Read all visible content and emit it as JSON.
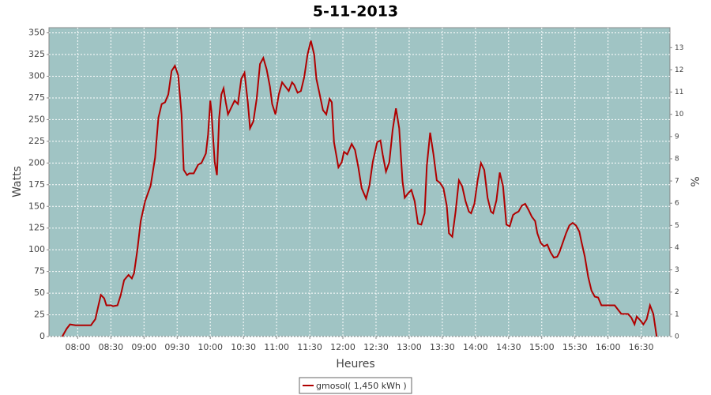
{
  "chart_data": {
    "type": "line",
    "title": "5-11-2013",
    "xlabel": "Heures",
    "ylabel": "Watts",
    "y2label": "%",
    "x": [
      466,
      470,
      473,
      478,
      492,
      496,
      499,
      501,
      504,
      506,
      510,
      512,
      516,
      519,
      522,
      526,
      529,
      531,
      534,
      537,
      541,
      546,
      550,
      553,
      556,
      559,
      562,
      565,
      568,
      571,
      574,
      576,
      579,
      581,
      585,
      589,
      592,
      596,
      598,
      600,
      601,
      604,
      606,
      608,
      610,
      612,
      614,
      616,
      619,
      622,
      625,
      628,
      631,
      634,
      636,
      639,
      642,
      645,
      648,
      651,
      654,
      656,
      659,
      662,
      665,
      668,
      671,
      674,
      676,
      679,
      682,
      685,
      688,
      691,
      694,
      696,
      699,
      702,
      705,
      708,
      710,
      712,
      716,
      719,
      721,
      724,
      728,
      731,
      734,
      737,
      741,
      744,
      747,
      751,
      754,
      756,
      759,
      762,
      765,
      768,
      771,
      774,
      776,
      779,
      782,
      785,
      788,
      791,
      794,
      796,
      799,
      802,
      805,
      808,
      811,
      814,
      816,
      819,
      822,
      825,
      828,
      831,
      834,
      836,
      839,
      842,
      845,
      848,
      851,
      854,
      856,
      859,
      862,
      865,
      868,
      871,
      874,
      876,
      879,
      882,
      885,
      888,
      891,
      894,
      896,
      899,
      902,
      905,
      908,
      911,
      914,
      916,
      919,
      922,
      925,
      928,
      931,
      934,
      936,
      939,
      942,
      945,
      948,
      951,
      954,
      956,
      960,
      964,
      966,
      969,
      972,
      975,
      978,
      981,
      984,
      986,
      989,
      992,
      995,
      998,
      1001,
      1004
    ],
    "series": [
      {
        "name": "gmosol( 1,450 kWh )",
        "color": "#b00000",
        "values": [
          0,
          9,
          14,
          13,
          13,
          20,
          37,
          48,
          44,
          36,
          36,
          35,
          36,
          48,
          65,
          71,
          67,
          73,
          100,
          133,
          156,
          174,
          206,
          252,
          268,
          270,
          279,
          306,
          312,
          301,
          256,
          192,
          186,
          188,
          188,
          198,
          200,
          211,
          233,
          272,
          260,
          201,
          186,
          252,
          279,
          286,
          270,
          256,
          264,
          272,
          268,
          297,
          304,
          270,
          240,
          248,
          274,
          314,
          321,
          308,
          288,
          268,
          256,
          279,
          293,
          288,
          283,
          293,
          290,
          281,
          283,
          299,
          325,
          341,
          325,
          297,
          279,
          261,
          256,
          274,
          270,
          224,
          195,
          201,
          213,
          210,
          222,
          215,
          195,
          171,
          159,
          174,
          201,
          224,
          226,
          210,
          190,
          201,
          238,
          263,
          240,
          179,
          160,
          165,
          169,
          156,
          130,
          129,
          142,
          197,
          235,
          210,
          180,
          177,
          171,
          151,
          119,
          115,
          144,
          180,
          173,
          156,
          144,
          142,
          153,
          180,
          200,
          192,
          160,
          144,
          142,
          157,
          189,
          173,
          129,
          127,
          140,
          142,
          144,
          151,
          153,
          146,
          138,
          133,
          119,
          108,
          104,
          106,
          97,
          91,
          92,
          97,
          108,
          119,
          128,
          131,
          128,
          121,
          109,
          92,
          69,
          53,
          46,
          45,
          36,
          36,
          36,
          36,
          36,
          31,
          26,
          26,
          26,
          22,
          14,
          23,
          19,
          14,
          20,
          36,
          26,
          0
        ]
      }
    ],
    "xlim": [
      454,
      1016
    ],
    "xticks": [
      {
        "value": 480,
        "label": "08:00"
      },
      {
        "value": 510,
        "label": "08:30"
      },
      {
        "value": 540,
        "label": "09:00"
      },
      {
        "value": 570,
        "label": "09:30"
      },
      {
        "value": 600,
        "label": "10:00"
      },
      {
        "value": 630,
        "label": "10:30"
      },
      {
        "value": 660,
        "label": "11:00"
      },
      {
        "value": 690,
        "label": "11:30"
      },
      {
        "value": 720,
        "label": "12:00"
      },
      {
        "value": 750,
        "label": "12:30"
      },
      {
        "value": 780,
        "label": "13:00"
      },
      {
        "value": 810,
        "label": "13:30"
      },
      {
        "value": 840,
        "label": "14:00"
      },
      {
        "value": 870,
        "label": "14:30"
      },
      {
        "value": 900,
        "label": "15:00"
      },
      {
        "value": 930,
        "label": "15:30"
      },
      {
        "value": 960,
        "label": "16:00"
      },
      {
        "value": 990,
        "label": "16:30"
      }
    ],
    "ylim": [
      0,
      356
    ],
    "yticks": [
      0,
      25,
      50,
      75,
      100,
      125,
      150,
      175,
      200,
      225,
      250,
      275,
      300,
      325,
      350
    ],
    "y2lim": [
      0,
      13.9
    ],
    "y2ticks": [
      0,
      1,
      2,
      3,
      4,
      5,
      6,
      7,
      8,
      9,
      10,
      11,
      12,
      13
    ],
    "grid": true,
    "plot_background": "#a0c4c4",
    "legend": "bottom"
  }
}
